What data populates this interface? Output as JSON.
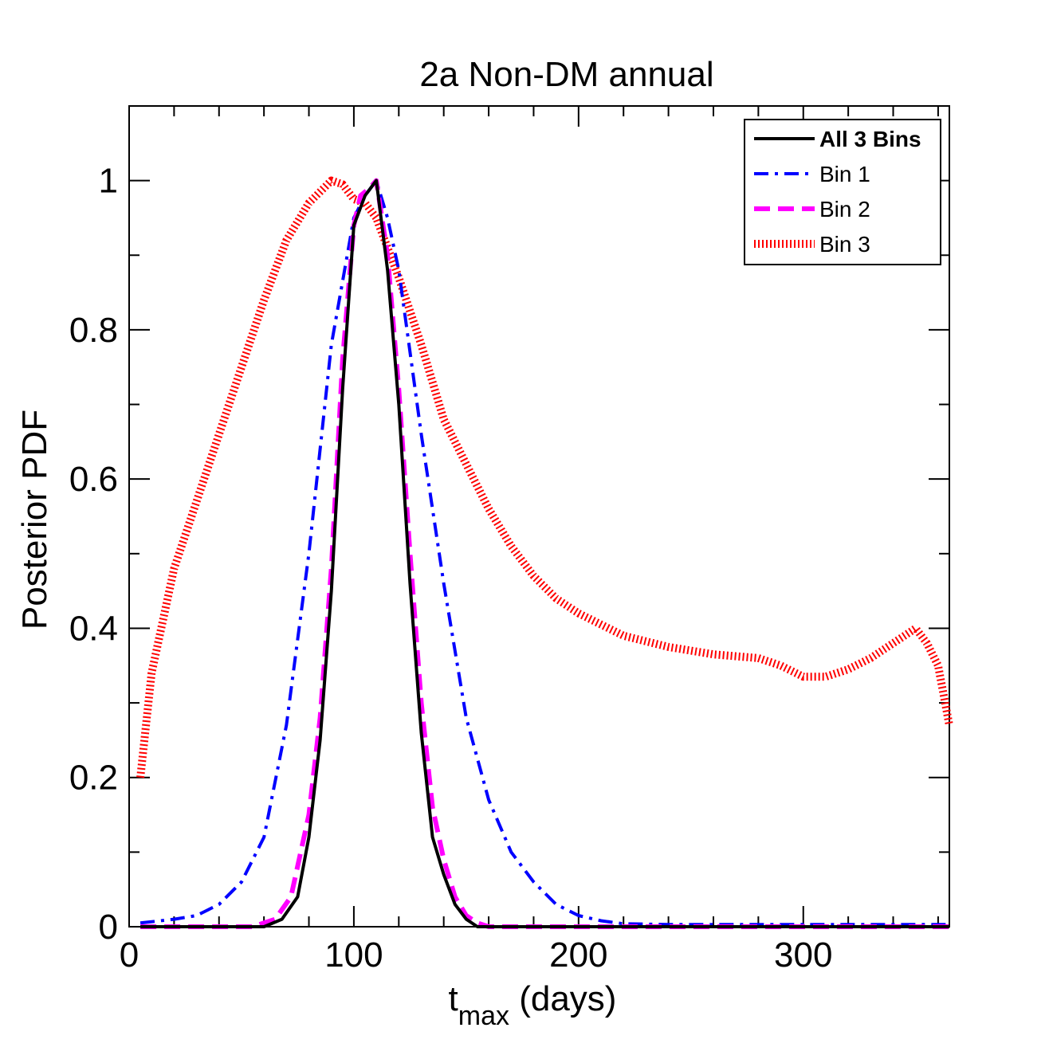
{
  "chart_data": {
    "type": "line",
    "title": "2a Non-DM annual",
    "xlabel_main": "t",
    "xlabel_sub": "max",
    "xlabel_rest": " (days)",
    "ylabel": "Posterior PDF",
    "xlim": [
      0,
      365
    ],
    "ylim": [
      0,
      1.1
    ],
    "xticks": [
      0,
      100,
      200,
      300
    ],
    "xtick_labels": [
      "0",
      "100",
      "200",
      "300"
    ],
    "yticks": [
      0,
      0.2,
      0.4,
      0.6,
      0.8,
      1
    ],
    "ytick_labels": [
      "0",
      "0.2",
      "0.4",
      "0.6",
      "0.8",
      "1"
    ],
    "legend_position": "top-right",
    "grid": false,
    "series": [
      {
        "name": "All 3 Bins",
        "color": "#000000",
        "style": "solid",
        "x": [
          5,
          60,
          68,
          75,
          80,
          85,
          90,
          95,
          100,
          105,
          110,
          115,
          120,
          125,
          130,
          135,
          140,
          145,
          150,
          155,
          160,
          200,
          300,
          365
        ],
        "y": [
          0,
          0,
          0.01,
          0.04,
          0.12,
          0.25,
          0.45,
          0.72,
          0.94,
          0.98,
          1.0,
          0.88,
          0.7,
          0.46,
          0.26,
          0.12,
          0.07,
          0.03,
          0.01,
          0.0,
          0,
          0,
          0,
          0
        ]
      },
      {
        "name": "Bin 1",
        "color": "#0000ff",
        "style": "dashdot",
        "x": [
          5,
          20,
          30,
          40,
          50,
          60,
          70,
          80,
          90,
          100,
          105,
          110,
          115,
          120,
          130,
          140,
          150,
          160,
          170,
          180,
          190,
          200,
          210,
          220,
          240,
          300,
          365
        ],
        "y": [
          0.005,
          0.01,
          0.015,
          0.03,
          0.06,
          0.12,
          0.27,
          0.5,
          0.78,
          0.95,
          0.98,
          1.0,
          0.95,
          0.88,
          0.66,
          0.46,
          0.28,
          0.17,
          0.1,
          0.06,
          0.03,
          0.015,
          0.008,
          0.004,
          0.003,
          0.003,
          0.003
        ]
      },
      {
        "name": "Bin 2",
        "color": "#ff00ff",
        "style": "dashed",
        "x": [
          5,
          55,
          65,
          72,
          80,
          85,
          90,
          95,
          100,
          103,
          107,
          110,
          115,
          120,
          125,
          130,
          135,
          140,
          145,
          150,
          155,
          160,
          200,
          300,
          365
        ],
        "y": [
          0,
          0,
          0.01,
          0.04,
          0.15,
          0.28,
          0.48,
          0.76,
          0.94,
          0.98,
          0.99,
          1.0,
          0.9,
          0.72,
          0.5,
          0.3,
          0.16,
          0.09,
          0.04,
          0.015,
          0.005,
          0,
          0,
          0,
          0
        ]
      },
      {
        "name": "Bin 3",
        "color": "#ff0000",
        "style": "dotted",
        "x": [
          5,
          10,
          20,
          30,
          40,
          50,
          60,
          70,
          80,
          90,
          95,
          100,
          105,
          110,
          115,
          120,
          130,
          140,
          150,
          160,
          170,
          180,
          190,
          200,
          220,
          240,
          260,
          280,
          290,
          300,
          310,
          320,
          330,
          340,
          350,
          355,
          360,
          365
        ],
        "y": [
          0.2,
          0.34,
          0.48,
          0.57,
          0.66,
          0.75,
          0.84,
          0.92,
          0.97,
          1.0,
          0.995,
          0.975,
          0.97,
          0.95,
          0.91,
          0.87,
          0.78,
          0.68,
          0.62,
          0.56,
          0.51,
          0.47,
          0.44,
          0.42,
          0.39,
          0.375,
          0.365,
          0.36,
          0.35,
          0.335,
          0.335,
          0.345,
          0.36,
          0.38,
          0.4,
          0.38,
          0.35,
          0.27
        ]
      }
    ]
  }
}
